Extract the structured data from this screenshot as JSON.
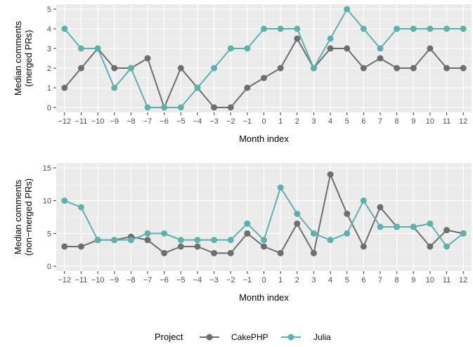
{
  "chart_data": [
    {
      "type": "line",
      "xlabel": "Month index",
      "ylabel": [
        "Median comments",
        "(merged PRs)"
      ],
      "x": [
        -12,
        -11,
        -10,
        -9,
        -8,
        -7,
        -6,
        -5,
        -4,
        -3,
        -2,
        -1,
        0,
        1,
        2,
        3,
        4,
        5,
        6,
        7,
        8,
        9,
        10,
        11,
        12
      ],
      "xlim": [
        -12,
        12
      ],
      "ylim": [
        0,
        5
      ],
      "yticks": [
        0,
        1,
        2,
        3,
        4,
        5
      ],
      "grid": true,
      "series": [
        {
          "name": "CakePHP",
          "color": "#6e6e6e",
          "values": [
            1,
            2,
            3,
            2,
            2,
            2.5,
            0,
            2,
            1,
            0,
            0,
            1,
            1.5,
            2,
            3.5,
            2,
            3,
            3,
            2,
            2.5,
            2,
            2,
            3,
            2,
            2
          ]
        },
        {
          "name": "Julia",
          "color": "#5ab4ac",
          "values": [
            4,
            3,
            3,
            1,
            2,
            0,
            0,
            0,
            1,
            2,
            3,
            3,
            4,
            4,
            4,
            2,
            3.5,
            5,
            4,
            3,
            4,
            4,
            4,
            4,
            4
          ]
        }
      ]
    },
    {
      "type": "line",
      "xlabel": "Month index",
      "ylabel": [
        "Median comments",
        "(non−merged PRs)"
      ],
      "x": [
        -12,
        -11,
        -10,
        -9,
        -8,
        -7,
        -6,
        -5,
        -4,
        -3,
        -2,
        -1,
        0,
        1,
        2,
        3,
        4,
        5,
        6,
        7,
        8,
        9,
        10,
        11,
        12
      ],
      "xlim": [
        -12,
        12
      ],
      "ylim": [
        0,
        15
      ],
      "yticks": [
        0,
        5,
        10,
        15
      ],
      "grid": true,
      "series": [
        {
          "name": "CakePHP",
          "color": "#6e6e6e",
          "values": [
            3,
            3,
            4,
            4,
            4.5,
            4,
            2,
            3,
            3,
            2,
            2,
            5,
            3,
            2,
            6.5,
            2,
            14,
            8,
            3,
            9,
            6,
            6,
            3,
            5.5,
            5
          ]
        },
        {
          "name": "Julia",
          "color": "#5ab4ac",
          "values": [
            10,
            9,
            4,
            4,
            4,
            5,
            5,
            4,
            4,
            4,
            4,
            6.5,
            4,
            12,
            8,
            5,
            4,
            5,
            10,
            6,
            6,
            6,
            6.5,
            3,
            5
          ]
        }
      ]
    }
  ],
  "legend": {
    "title": "Project",
    "items": [
      {
        "label": "CakePHP",
        "color": "#6e6e6e"
      },
      {
        "label": "Julia",
        "color": "#5ab4ac"
      }
    ]
  }
}
